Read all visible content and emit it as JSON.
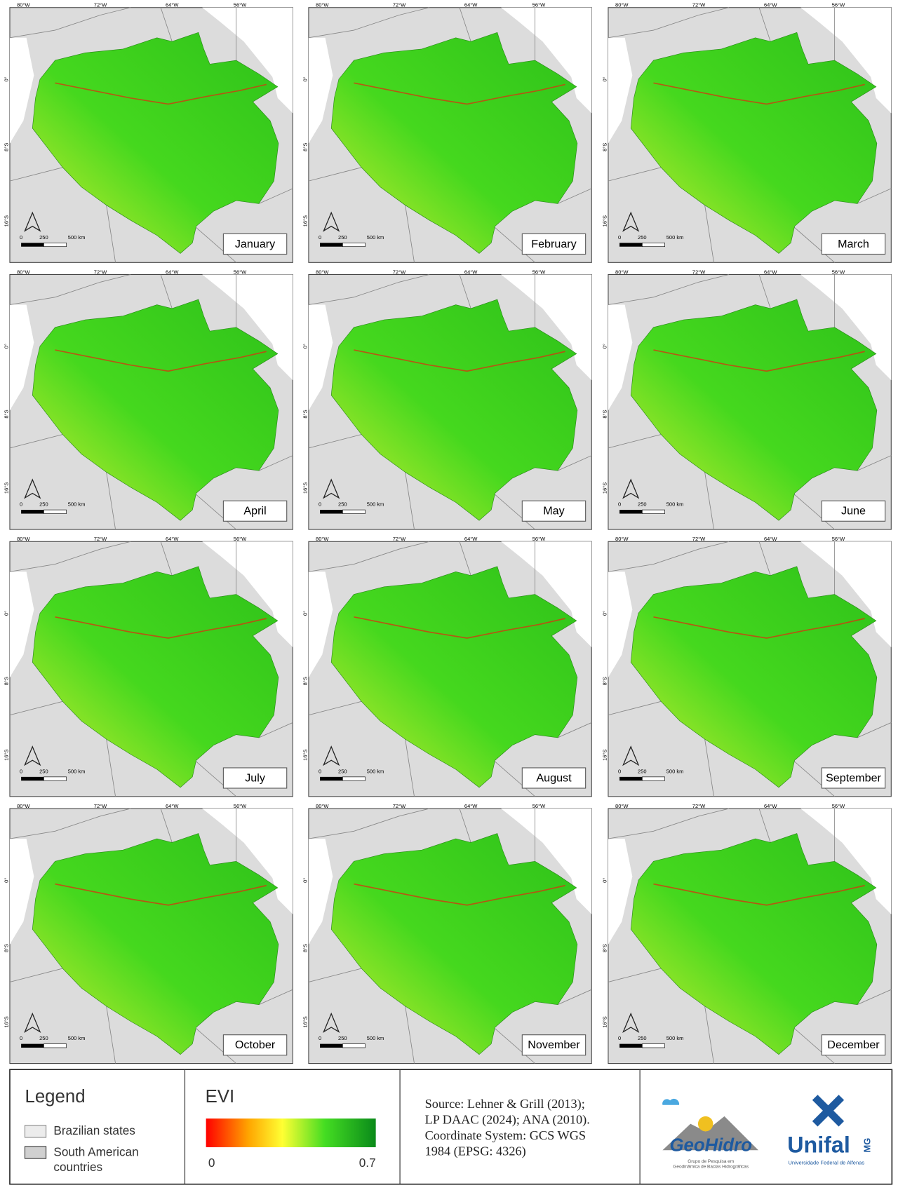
{
  "map": {
    "lon_labels": [
      "80°W",
      "72°W",
      "64°W",
      "56°W"
    ],
    "lat_labels": [
      "0°",
      "8°S",
      "16°S"
    ],
    "scale_labels": [
      "0",
      "250",
      "500 km"
    ],
    "panels": [
      "January",
      "February",
      "March",
      "April",
      "May",
      "June",
      "July",
      "August",
      "September",
      "October",
      "November",
      "December"
    ]
  },
  "legend": {
    "title": "Legend",
    "items": [
      "Brazilian states",
      "South American countries"
    ],
    "evi": {
      "title": "EVI",
      "min": 0,
      "max": 0.7
    },
    "source": [
      "Source: Lehner & Grill (2013);",
      "LP DAAC (2024); ANA (2010).",
      "Coordinate System: GCS WGS",
      "1984 (EPSG: 4326)"
    ],
    "logos": {
      "geohidro": "GeoHidro",
      "geohidro_caption": [
        "Grupo de Pesquisa em",
        "Geodinâmica de Bacias Hidrográficas"
      ],
      "unifal": "Unifal",
      "unifal_tag": "MG",
      "unifal_caption": "Universidade Federal de Alfenas"
    }
  }
}
